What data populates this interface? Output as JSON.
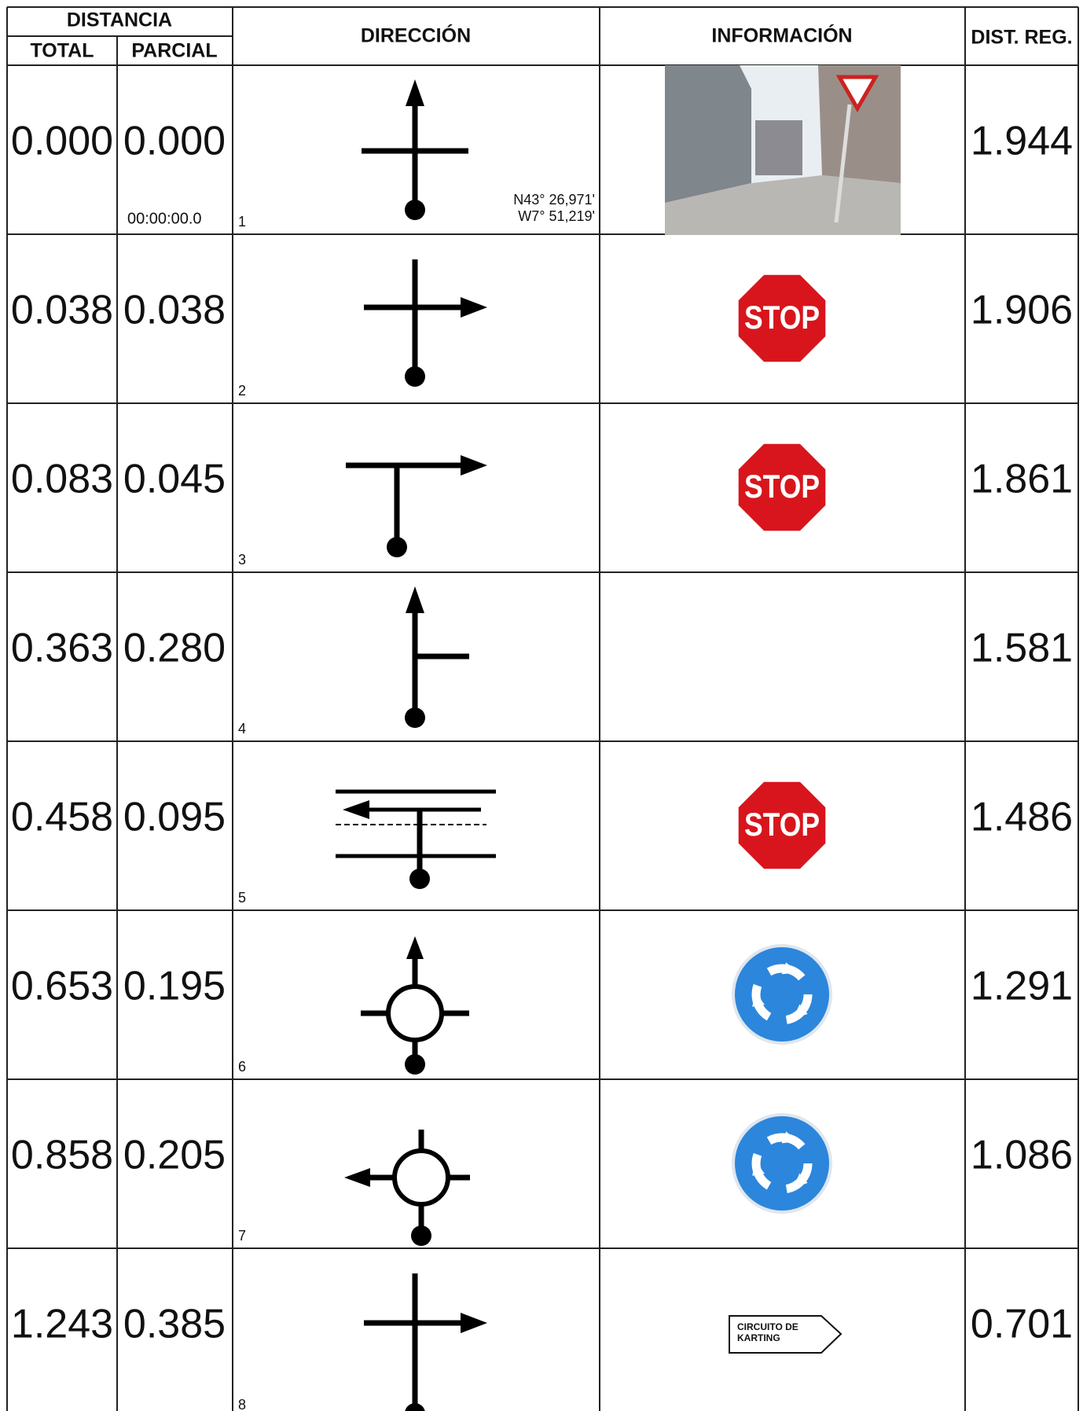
{
  "header": {
    "distance": "DISTANCIA",
    "total": "TOTAL",
    "partial": "PARCIAL",
    "direction": "DIRECCIÓN",
    "information": "INFORMACIÓN",
    "dist_reg": "DIST. REG."
  },
  "rows": [
    {
      "number": 1,
      "total": "0.000",
      "partial": "0.000",
      "time": "00:00:00.0",
      "coordinates": [
        "N43° 26,971'",
        "W7° 51,219'"
      ],
      "dist_reg": "1.944"
    },
    {
      "number": 2,
      "total": "0.038",
      "partial": "0.038",
      "sign": "STOP",
      "dist_reg": "1.906"
    },
    {
      "number": 3,
      "total": "0.083",
      "partial": "0.045",
      "sign": "STOP",
      "dist_reg": "1.861"
    },
    {
      "number": 4,
      "total": "0.363",
      "partial": "0.280",
      "dist_reg": "1.581"
    },
    {
      "number": 5,
      "total": "0.458",
      "partial": "0.095",
      "sign": "STOP",
      "dist_reg": "1.486"
    },
    {
      "number": 6,
      "total": "0.653",
      "partial": "0.195",
      "dist_reg": "1.291"
    },
    {
      "number": 7,
      "total": "0.858",
      "partial": "0.205",
      "dist_reg": "1.086"
    },
    {
      "number": 8,
      "total": "1.243",
      "partial": "0.385",
      "sign_lines": [
        "CIRCUITO DE",
        "KARTING"
      ],
      "dist_reg": "0.701"
    }
  ]
}
